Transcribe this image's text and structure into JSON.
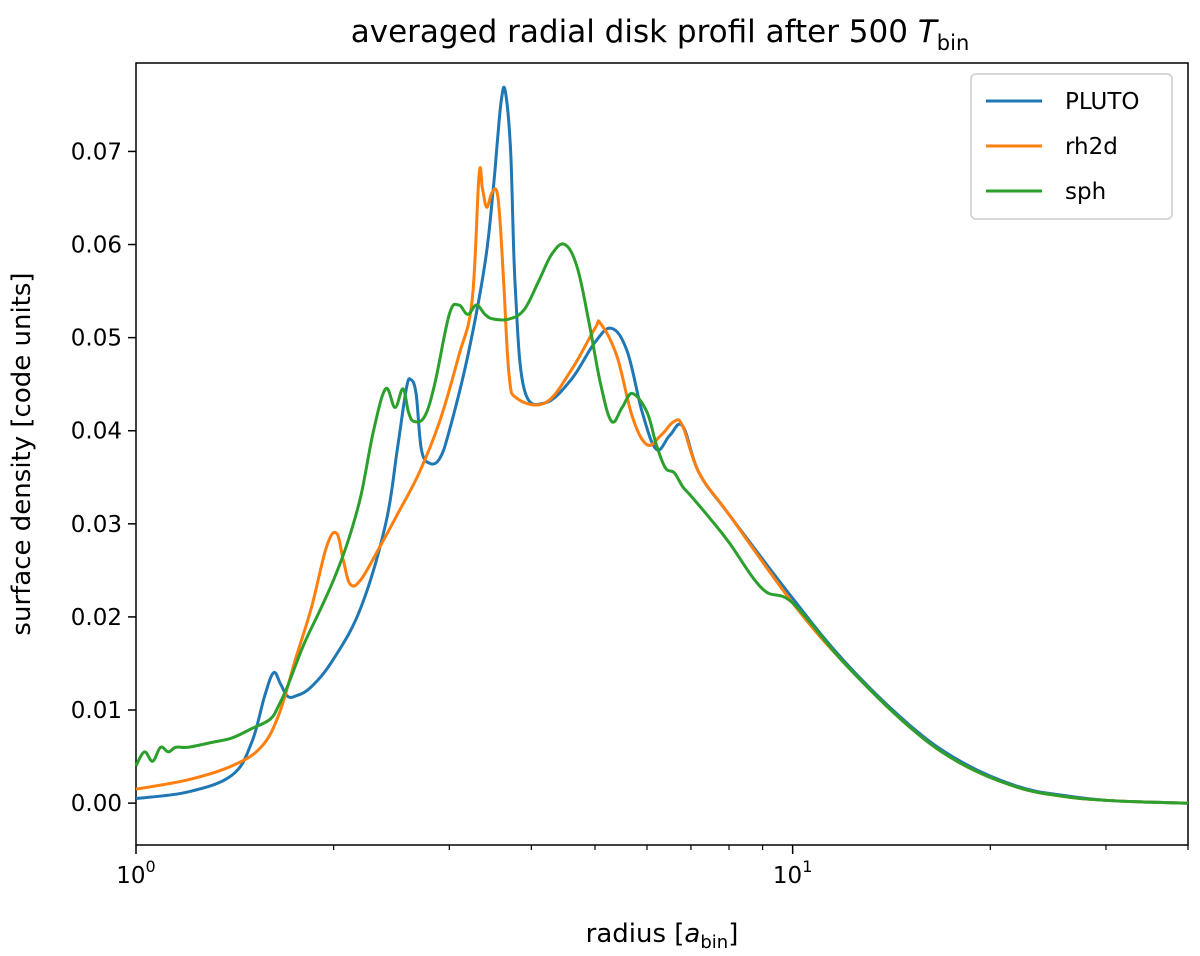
{
  "chart_data": {
    "type": "line",
    "title": {
      "main": "averaged radial disk profil after 500 ",
      "math_var": "T",
      "math_sub": "bin"
    },
    "xlabel": {
      "main": "radius [",
      "math_var": "a",
      "math_sub": "bin",
      "close": "]"
    },
    "ylabel": "surface density [code units]",
    "xscale": "log",
    "xlim": [
      1,
      40
    ],
    "ylim": [
      -0.0045,
      0.0795
    ],
    "xticks": [
      {
        "value": 1,
        "base": "10",
        "exp": "0"
      },
      {
        "value": 10,
        "base": "10",
        "exp": "1"
      }
    ],
    "yticks": [
      {
        "value": 0.0,
        "label": "0.00"
      },
      {
        "value": 0.01,
        "label": "0.01"
      },
      {
        "value": 0.02,
        "label": "0.02"
      },
      {
        "value": 0.03,
        "label": "0.03"
      },
      {
        "value": 0.04,
        "label": "0.04"
      },
      {
        "value": 0.05,
        "label": "0.05"
      },
      {
        "value": 0.06,
        "label": "0.06"
      },
      {
        "value": 0.07,
        "label": "0.07"
      }
    ],
    "grid": false,
    "legend_position": "top-right",
    "series": [
      {
        "name": "PLUTO",
        "color": "#1f77b4",
        "x": [
          1.0,
          1.2,
          1.4,
          1.5,
          1.57,
          1.62,
          1.66,
          1.7,
          1.75,
          1.85,
          2.0,
          2.2,
          2.4,
          2.5,
          2.58,
          2.62,
          2.67,
          2.72,
          2.8,
          2.9,
          3.0,
          3.2,
          3.4,
          3.5,
          3.55,
          3.6,
          3.65,
          3.72,
          3.78,
          3.9,
          4.2,
          4.6,
          5.0,
          5.3,
          5.6,
          5.9,
          6.2,
          6.5,
          6.8,
          7.2,
          8.0,
          10.0,
          12.0,
          15.0,
          18.0,
          22.0,
          26.0,
          30.0,
          35.0,
          40.0
        ],
        "y": [
          0.0005,
          0.0012,
          0.003,
          0.0065,
          0.0115,
          0.014,
          0.0128,
          0.0115,
          0.0115,
          0.0125,
          0.0155,
          0.021,
          0.03,
          0.038,
          0.0445,
          0.0455,
          0.044,
          0.038,
          0.0365,
          0.037,
          0.04,
          0.048,
          0.058,
          0.066,
          0.071,
          0.0755,
          0.0765,
          0.07,
          0.0555,
          0.0445,
          0.043,
          0.0455,
          0.0495,
          0.051,
          0.0485,
          0.042,
          0.038,
          0.0395,
          0.0405,
          0.0355,
          0.031,
          0.022,
          0.0152,
          0.0085,
          0.0045,
          0.0018,
          0.0008,
          0.0003,
          0.0001,
          0.0
        ]
      },
      {
        "name": "rh2d",
        "color": "#ff7f0e",
        "x": [
          1.0,
          1.2,
          1.4,
          1.55,
          1.65,
          1.75,
          1.85,
          1.95,
          2.02,
          2.07,
          2.12,
          2.2,
          2.35,
          2.5,
          2.7,
          2.9,
          3.1,
          3.25,
          3.33,
          3.37,
          3.42,
          3.48,
          3.54,
          3.58,
          3.63,
          3.7,
          3.8,
          4.2,
          4.6,
          5.0,
          5.1,
          5.4,
          5.7,
          6.0,
          6.3,
          6.6,
          6.8,
          7.2,
          8.0,
          10.0,
          12.0,
          15.0,
          18.0,
          22.0,
          26.0,
          30.0,
          35.0,
          40.0
        ],
        "y": [
          0.0015,
          0.0025,
          0.004,
          0.006,
          0.0095,
          0.0155,
          0.021,
          0.0275,
          0.029,
          0.026,
          0.0235,
          0.024,
          0.0275,
          0.031,
          0.0355,
          0.041,
          0.048,
          0.054,
          0.0675,
          0.066,
          0.064,
          0.0655,
          0.0658,
          0.063,
          0.056,
          0.046,
          0.0435,
          0.043,
          0.0465,
          0.051,
          0.0515,
          0.048,
          0.0415,
          0.0385,
          0.0395,
          0.041,
          0.0405,
          0.0355,
          0.031,
          0.0215,
          0.015,
          0.0083,
          0.0043,
          0.0017,
          0.0007,
          0.0003,
          0.0001,
          0.0
        ]
      },
      {
        "name": "sph",
        "color": "#2ca02c",
        "x": [
          1.0,
          1.03,
          1.06,
          1.09,
          1.12,
          1.15,
          1.2,
          1.3,
          1.4,
          1.5,
          1.6,
          1.65,
          1.7,
          1.8,
          1.9,
          2.0,
          2.1,
          2.2,
          2.3,
          2.4,
          2.48,
          2.55,
          2.6,
          2.65,
          2.75,
          2.85,
          3.0,
          3.1,
          3.2,
          3.3,
          3.4,
          3.5,
          3.7,
          3.9,
          4.1,
          4.3,
          4.5,
          4.7,
          4.9,
          5.1,
          5.3,
          5.5,
          5.7,
          6.0,
          6.2,
          6.4,
          6.6,
          6.8,
          7.0,
          7.5,
          8.0,
          9.0,
          10.0,
          12.0,
          15.0,
          18.0,
          22.0,
          26.0,
          30.0,
          35.0,
          40.0
        ],
        "y": [
          0.004,
          0.0055,
          0.0045,
          0.006,
          0.0055,
          0.006,
          0.006,
          0.0065,
          0.007,
          0.008,
          0.009,
          0.0105,
          0.0125,
          0.017,
          0.0205,
          0.024,
          0.028,
          0.033,
          0.04,
          0.0445,
          0.0425,
          0.0445,
          0.042,
          0.041,
          0.0415,
          0.045,
          0.0525,
          0.0535,
          0.0525,
          0.0535,
          0.0525,
          0.052,
          0.052,
          0.053,
          0.056,
          0.059,
          0.06,
          0.0575,
          0.0515,
          0.045,
          0.041,
          0.0425,
          0.044,
          0.042,
          0.0385,
          0.036,
          0.0355,
          0.034,
          0.033,
          0.0305,
          0.028,
          0.023,
          0.0215,
          0.015,
          0.0083,
          0.0043,
          0.0017,
          0.0007,
          0.0003,
          0.0001,
          0.0
        ]
      }
    ]
  }
}
